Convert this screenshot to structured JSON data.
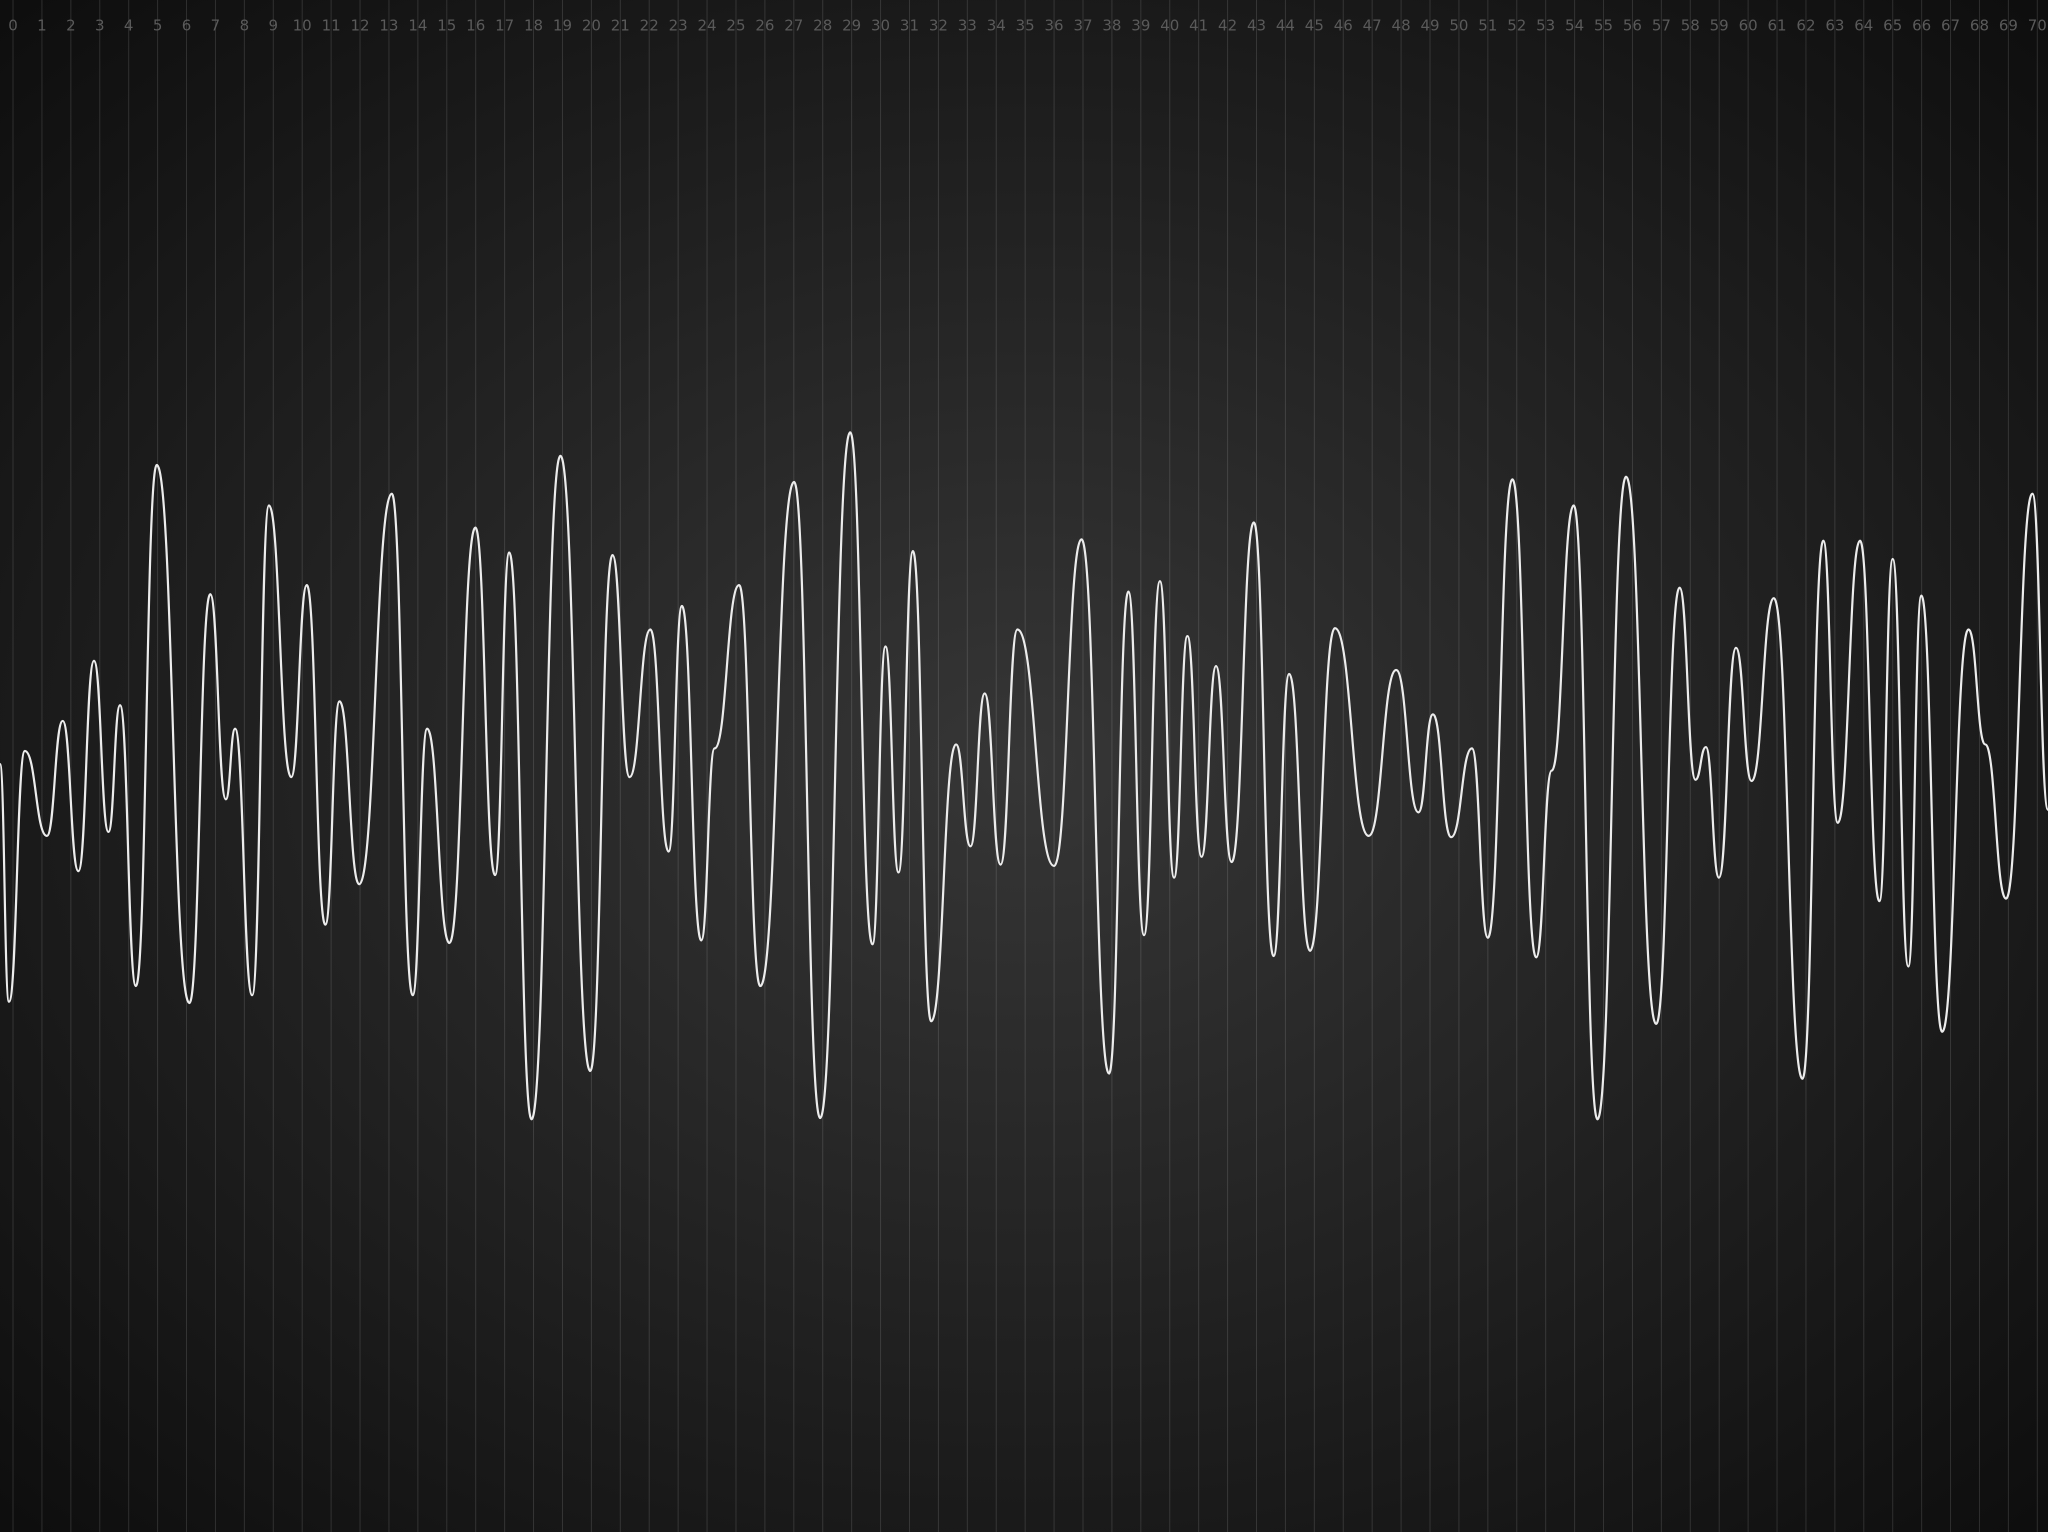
{
  "chart_data": {
    "type": "line",
    "xlim": [
      -0.45,
      70.37
    ],
    "xticks": [
      0,
      1,
      2,
      3,
      4,
      5,
      6,
      7,
      8,
      9,
      10,
      11,
      12,
      13,
      14,
      15,
      16,
      17,
      18,
      19,
      20,
      21,
      22,
      23,
      24,
      25,
      26,
      27,
      28,
      29,
      30,
      31,
      32,
      33,
      34,
      35,
      36,
      37,
      38,
      39,
      40,
      41,
      42,
      43,
      44,
      45,
      46,
      47,
      48,
      49,
      50,
      51,
      52,
      53,
      54,
      55,
      56,
      57,
      58,
      59,
      60,
      61,
      62,
      63,
      64,
      65,
      66,
      67,
      68,
      69,
      70
    ],
    "ylim": [
      -5.8,
      5.93
    ],
    "grid": true,
    "color": "#ececec",
    "x": [
      -0.45,
      -0.14,
      0.41,
      1.17,
      1.72,
      2.26,
      2.8,
      3.3,
      3.7,
      4.25,
      4.97,
      6.1,
      6.82,
      7.36,
      7.68,
      8.27,
      8.85,
      9.62,
      10.16,
      10.8,
      11.29,
      11.97,
      13.1,
      13.82,
      14.32,
      15.09,
      15.99,
      16.67,
      17.16,
      17.93,
      18.93,
      19.96,
      20.73,
      21.32,
      22.04,
      22.67,
      23.13,
      23.8,
      24.26,
      25.11,
      25.84,
      27.01,
      27.91,
      28.95,
      29.72,
      30.17,
      30.62,
      31.12,
      31.75,
      32.61,
      33.11,
      33.6,
      34.15,
      34.73,
      36.0,
      36.95,
      37.9,
      38.57,
      39.11,
      39.66,
      40.15,
      40.61,
      41.1,
      41.6,
      42.14,
      42.91,
      43.59,
      44.13,
      44.85,
      45.71,
      46.88,
      47.83,
      48.6,
      49.1,
      49.73,
      50.45,
      51.0,
      51.85,
      52.67,
      53.21,
      53.97,
      54.79,
      55.78,
      56.82,
      57.63,
      58.18,
      58.54,
      58.99,
      59.58,
      60.12,
      60.89,
      61.88,
      62.6,
      63.1,
      63.87,
      64.54,
      65.0,
      65.54,
      65.99,
      66.71,
      67.62,
      68.2,
      68.92,
      69.83,
      70.37
    ],
    "values": [
      0.08,
      -1.74,
      0.18,
      -0.47,
      0.41,
      -0.74,
      0.87,
      -0.44,
      0.53,
      -1.62,
      2.37,
      -1.75,
      1.38,
      -0.19,
      0.35,
      -1.69,
      2.06,
      -0.02,
      1.45,
      -1.15,
      0.56,
      -0.84,
      2.15,
      -1.69,
      0.35,
      -1.29,
      1.89,
      -0.77,
      1.7,
      -2.64,
      2.44,
      -2.27,
      1.68,
      -0.02,
      1.11,
      -0.59,
      1.29,
      -1.27,
      0.2,
      1.45,
      -1.62,
      2.24,
      -2.63,
      2.62,
      -1.3,
      0.98,
      -0.75,
      1.71,
      -1.89,
      0.23,
      -0.55,
      0.62,
      -0.69,
      1.11,
      -0.7,
      1.8,
      -2.29,
      1.4,
      -1.23,
      1.48,
      -0.79,
      1.06,
      -0.63,
      0.83,
      -0.67,
      1.93,
      -1.39,
      0.77,
      -1.35,
      1.12,
      -0.47,
      0.8,
      -0.29,
      0.46,
      -0.48,
      0.2,
      -1.25,
      2.26,
      -1.4,
      0.03,
      2.06,
      -2.64,
      2.28,
      -1.91,
      1.43,
      -0.04,
      0.21,
      -0.79,
      0.97,
      -0.05,
      1.35,
      -2.33,
      1.79,
      -0.37,
      1.79,
      -0.97,
      1.65,
      -1.47,
      1.37,
      -1.97,
      1.11,
      0.23,
      -0.95,
      2.15,
      -0.27
    ]
  }
}
